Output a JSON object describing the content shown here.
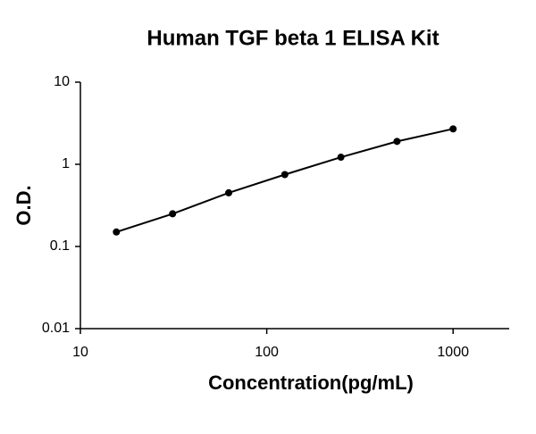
{
  "chart_data": {
    "type": "scatter",
    "title": "Human TGF beta 1 ELISA Kit",
    "x_label": "Concentration(pg/mL)",
    "y_label": "O.D.",
    "x": [
      15.6,
      31.25,
      62.5,
      125,
      250,
      500,
      1000
    ],
    "series": [
      {
        "color": "#000000",
        "values": [
          0.15,
          0.25,
          0.45,
          0.75,
          1.22,
          1.9,
          2.7
        ]
      }
    ],
    "xlim": [
      10,
      2000
    ],
    "ylim": [
      0.01,
      10
    ],
    "xticks": [
      10,
      100,
      1000
    ],
    "yticks": [
      0.01,
      0.1,
      1,
      10
    ],
    "xlog": true,
    "ylog": true,
    "line": true
  }
}
